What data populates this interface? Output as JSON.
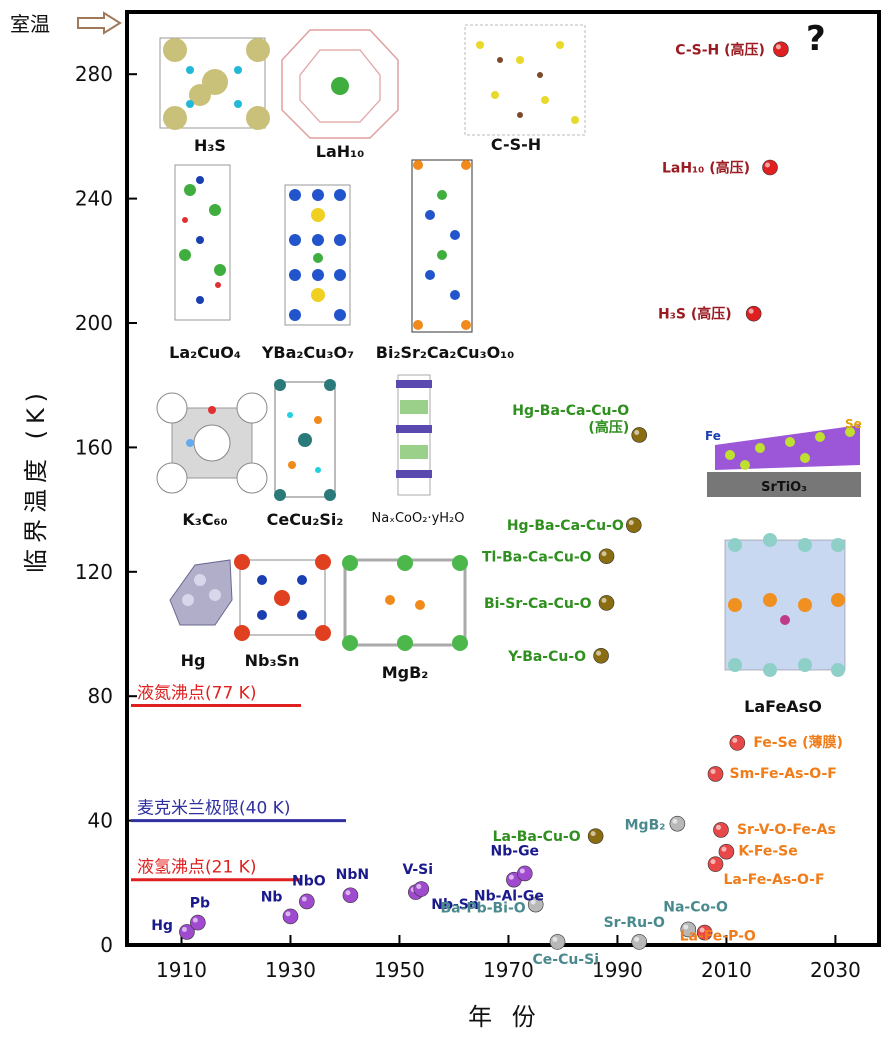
{
  "colors": {
    "cuprate": "#2f8f1f",
    "pressure": "#9b1b22",
    "iron": "#f07d1a",
    "conventional": "#1a1a8c",
    "other": "#4a8a8e",
    "ln2": "#e02020",
    "mcmillan": "#3030a0"
  },
  "chart_data": {
    "type": "scatter",
    "xlabel": "年  份",
    "ylabel": "临界温度 (K)",
    "xlim": [
      1900,
      2038
    ],
    "ylim": [
      0,
      300
    ],
    "xticks": [
      "1910",
      "1930",
      "1950",
      "1970",
      "1990",
      "2010",
      "2030"
    ],
    "yticks": [
      "0",
      "40",
      "80",
      "120",
      "160",
      "200",
      "240",
      "280"
    ],
    "room_temp_label": "室温",
    "room_temp_value": 300,
    "reference_lines": [
      {
        "label": "液氮沸点(77 K)",
        "value": 77,
        "color": "#e02020"
      },
      {
        "label": "麦克米兰极限(40 K)",
        "value": 40,
        "color": "#3030a0"
      },
      {
        "label": "液氢沸点(21 K)",
        "value": 21,
        "color": "#e02020"
      }
    ],
    "series": [
      {
        "name": "conventional",
        "points": [
          {
            "label": "Hg",
            "x": 1911,
            "y": 4.2
          },
          {
            "label": "Pb",
            "x": 1913,
            "y": 7.2
          },
          {
            "label": "Nb",
            "x": 1930,
            "y": 9.2
          },
          {
            "label": "NbO",
            "x": 1933,
            "y": 14
          },
          {
            "label": "NbN",
            "x": 1941,
            "y": 16
          },
          {
            "label": "V-Si",
            "x": 1953,
            "y": 17
          },
          {
            "label": "Nb-Sn",
            "x": 1954,
            "y": 18
          },
          {
            "label": "Nb-Al-Ge",
            "x": 1971,
            "y": 21
          },
          {
            "label": "Nb-Ge",
            "x": 1973,
            "y": 23
          }
        ]
      },
      {
        "name": "cuprates",
        "points": [
          {
            "label": "La-Ba-Cu-O",
            "x": 1986,
            "y": 35
          },
          {
            "label": "Y-Ba-Cu-O",
            "x": 1987,
            "y": 93
          },
          {
            "label": "Bi-Sr-Ca-Cu-O",
            "x": 1988,
            "y": 110
          },
          {
            "label": "Tl-Ba-Ca-Cu-O",
            "x": 1988,
            "y": 125
          },
          {
            "label": "Hg-Ba-Ca-Cu-O",
            "x": 1993,
            "y": 135
          },
          {
            "label": "Hg-Ba-Ca-Cu-O\n(高压)",
            "x": 1994,
            "y": 164
          }
        ]
      },
      {
        "name": "other",
        "points": [
          {
            "label": "Ba-Pb-Bi-O",
            "x": 1975,
            "y": 13
          },
          {
            "label": "Ce-Cu-Si",
            "x": 1979,
            "y": 1
          },
          {
            "label": "Sr-Ru-O",
            "x": 1994,
            "y": 1
          },
          {
            "label": "Na-Co-O",
            "x": 2003,
            "y": 5
          },
          {
            "label": "MgB₂",
            "x": 2001,
            "y": 39
          }
        ]
      },
      {
        "name": "iron-based",
        "points": [
          {
            "label": "La-Fe-P-O",
            "x": 2006,
            "y": 4
          },
          {
            "label": "La-Fe-As-O-F",
            "x": 2008,
            "y": 26
          },
          {
            "label": "K-Fe-Se",
            "x": 2010,
            "y": 30
          },
          {
            "label": "Sr-V-O-Fe-As",
            "x": 2009,
            "y": 37
          },
          {
            "label": "Sm-Fe-As-O-F",
            "x": 2008,
            "y": 55
          },
          {
            "label": "Fe-Se (薄膜)",
            "x": 2012,
            "y": 65
          }
        ]
      },
      {
        "name": "high-pressure hydrides",
        "points": [
          {
            "label": "H₃S (高压)",
            "x": 2015,
            "y": 203
          },
          {
            "label": "LaH₁₀ (高压)",
            "x": 2018,
            "y": 250
          },
          {
            "label": "C-S-H (高压)",
            "x": 2020,
            "y": 288
          }
        ]
      }
    ],
    "annotation": "?",
    "structure_labels": [
      "H₃S",
      "LaH₁₀",
      "C-S-H",
      "La₂CuO₄",
      "YBa₂Cu₃O₇",
      "Bi₂Sr₂Ca₂Cu₃O₁₀",
      "K₃C₆₀",
      "CeCu₂Si₂",
      "NaₓCoO₂·yH₂O",
      "Hg",
      "Nb₃Sn",
      "MgB₂",
      "LaFeAsO"
    ],
    "inset_labels": {
      "substrate": "SrTiO₃",
      "fe": "Fe",
      "se": "Se"
    }
  }
}
